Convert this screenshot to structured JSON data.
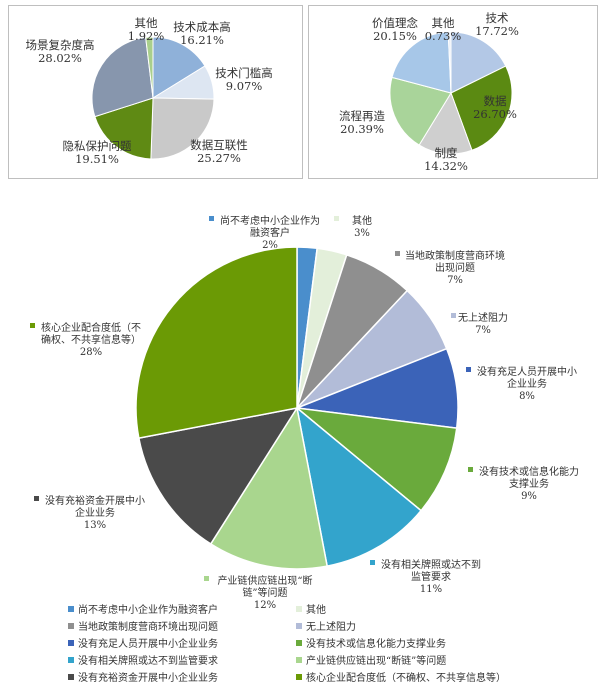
{
  "chart_data": [
    {
      "type": "pie",
      "title": "",
      "slices": [
        {
          "label": "技术成本高",
          "value": 16.21,
          "value_label": "16.21%",
          "color": "#8fb1d9"
        },
        {
          "label": "技术门槛高",
          "value": 9.07,
          "value_label": "9.07%",
          "color": "#dde6f2"
        },
        {
          "label": "数据互联性",
          "value": 25.27,
          "value_label": "25.27%",
          "color": "#c9c9c9"
        },
        {
          "label": "隐私保护问题",
          "value": 19.51,
          "value_label": "19.51%",
          "color": "#5f8a14"
        },
        {
          "label": "场景复杂度高",
          "value": 28.02,
          "value_label": "28.02%",
          "color": "#8796ad"
        },
        {
          "label": "其他",
          "value": 1.92,
          "value_label": "1.92%",
          "color": "#a9cf8c"
        }
      ]
    },
    {
      "type": "pie",
      "title": "",
      "slices": [
        {
          "label": "技术",
          "value": 17.72,
          "value_label": "17.72%",
          "color": "#b3c8e6"
        },
        {
          "label": "数据",
          "value": 26.7,
          "value_label": "26.70%",
          "color": "#5b8a12"
        },
        {
          "label": "制度",
          "value": 14.32,
          "value_label": "14.32%",
          "color": "#cfcfcf"
        },
        {
          "label": "流程再造",
          "value": 20.39,
          "value_label": "20.39%",
          "color": "#a9d49a"
        },
        {
          "label": "价值理念",
          "value": 20.15,
          "value_label": "20.15%",
          "color": "#a7c7e8"
        },
        {
          "label": "其他",
          "value": 0.73,
          "value_label": "0.73%",
          "color": "#e8eef6"
        }
      ]
    },
    {
      "type": "pie",
      "title": "",
      "slices": [
        {
          "label": "尚不考虑中小企业作为融资客户",
          "label_lines": [
            "尚不考虑中小企业作为",
            "融资客户"
          ],
          "value": 2,
          "value_label": "2%",
          "color": "#4a8ecc"
        },
        {
          "label": "其他",
          "label_lines": [
            "其他"
          ],
          "value": 3,
          "value_label": "3%",
          "color": "#e3efda"
        },
        {
          "label": "当地政策制度营商环境出现问题",
          "label_lines": [
            "当地政策制度营商环境",
            "出现问题"
          ],
          "value": 7,
          "value_label": "7%",
          "color": "#8f8f8f"
        },
        {
          "label": "无上述阻力",
          "label_lines": [
            "无上述阻力"
          ],
          "value": 7,
          "value_label": "7%",
          "color": "#b2bcd8"
        },
        {
          "label": "没有充足人员开展中小企业业务",
          "label_lines": [
            "没有充足人员开展中小",
            "企业业务"
          ],
          "value": 8,
          "value_label": "8%",
          "color": "#3b63b8"
        },
        {
          "label": "没有技术或信息化能力支撑业务",
          "label_lines": [
            "没有技术或信息化能力",
            "支撑业务"
          ],
          "value": 9,
          "value_label": "9%",
          "color": "#6aaa3c"
        },
        {
          "label": "没有相关牌照或达不到监管要求",
          "label_lines": [
            "没有相关牌照或达不到",
            "监管要求"
          ],
          "value": 11,
          "value_label": "11%",
          "color": "#33a4cc"
        },
        {
          "label": "产业链供应链出现“断链”等问题",
          "label_lines": [
            "产业链供应链出现“断",
            "链”等问题"
          ],
          "value": 12,
          "value_label": "12%",
          "color": "#a9d68e"
        },
        {
          "label": "没有充裕资金开展中小企业业务",
          "label_lines": [
            "没有充裕资金开展中小",
            "企业业务"
          ],
          "value": 13,
          "value_label": "13%",
          "color": "#4a4a4a"
        },
        {
          "label": "核心企业配合度低（不确权、不共享信息等）",
          "label_lines": [
            "核心企业配合度低（不",
            "确权、不共享信息等）"
          ],
          "value": 28,
          "value_label": "28%",
          "color": "#6b9a05"
        }
      ],
      "legend": {
        "placement": "bottom",
        "items": [
          {
            "label": "尚不考虑中小企业作为融资客户",
            "color": "#4a8ecc"
          },
          {
            "label": "其他",
            "color": "#e3efda"
          },
          {
            "label": "当地政策制度营商环境出现问题",
            "color": "#8f8f8f"
          },
          {
            "label": "无上述阻力",
            "color": "#b2bcd8"
          },
          {
            "label": "没有充足人员开展中小企业业务",
            "color": "#3b63b8"
          },
          {
            "label": "没有技术或信息化能力支撑业务",
            "color": "#6aaa3c"
          },
          {
            "label": "没有相关牌照或达不到监管要求",
            "color": "#33a4cc"
          },
          {
            "label": "产业链供应链出现“断链”等问题",
            "color": "#a9d68e"
          },
          {
            "label": "没有充裕资金开展中小企业业务",
            "color": "#4a4a4a"
          },
          {
            "label": "核心企业配合度低（不确权、不共享信息等）",
            "color": "#6b9a05"
          }
        ]
      }
    }
  ]
}
